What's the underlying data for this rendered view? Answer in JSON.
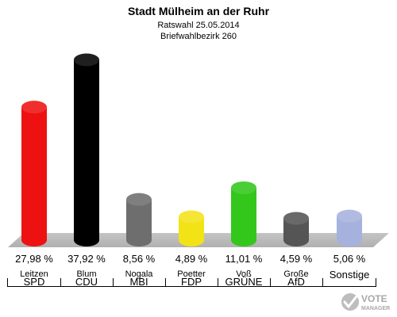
{
  "header": {
    "title": "Stadt Mülheim an der Ruhr",
    "subtitle": "Ratswahl 25.05.2014",
    "district": "Briefwahlbezirk 260"
  },
  "logo": {
    "line1": "VOTE",
    "line2": "MANAGER",
    "icon": "ballot-check-icon"
  },
  "chart_data": {
    "type": "bar",
    "title": "Stadt Mülheim an der Ruhr",
    "subtitle": "Ratswahl 25.05.2014 / Briefwahlbezirk 260",
    "ylim": [
      0,
      40
    ],
    "grid": false,
    "legend": "none",
    "categories": [
      "SPD",
      "CDU",
      "MBI",
      "FDP",
      "GRÜNE",
      "AfD",
      "Sonstige"
    ],
    "candidates": [
      "Leitzen",
      "Blum",
      "Nogala",
      "Poetter",
      "Voß",
      "Große",
      ""
    ],
    "values": [
      27.98,
      37.92,
      8.56,
      4.89,
      11.01,
      4.59,
      5.06
    ],
    "value_labels": [
      "27,98 %",
      "37,92 %",
      "8,56 %",
      "4,89 %",
      "11,01 %",
      "4,59 %",
      "5,06 %"
    ],
    "colors": [
      "#ee1111",
      "#000000",
      "#6e6e6e",
      "#f2e316",
      "#33c61b",
      "#555555",
      "#a6b2dd"
    ]
  }
}
